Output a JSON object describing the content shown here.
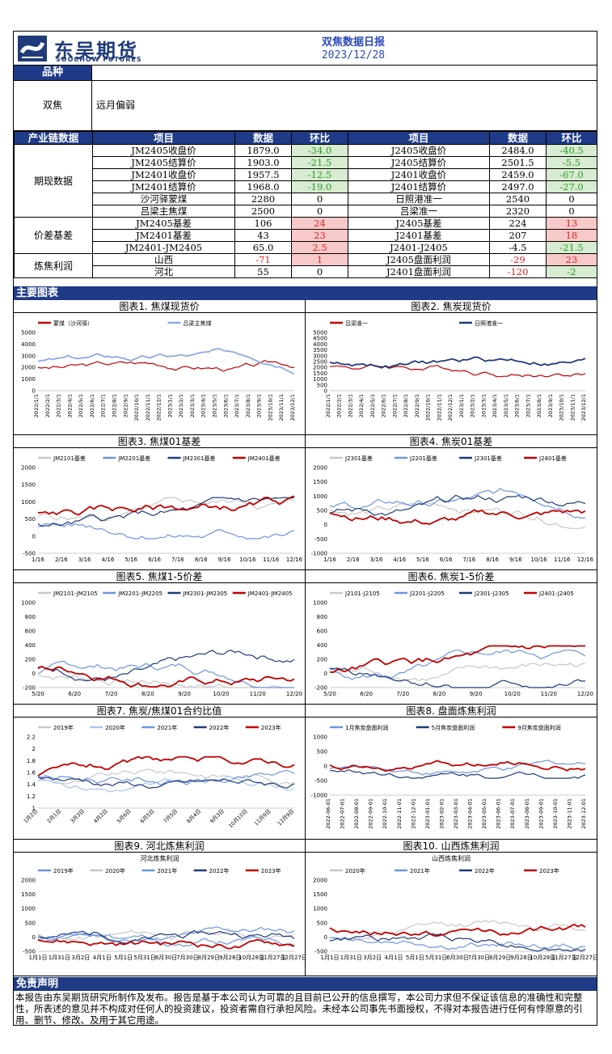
{
  "header": {
    "logo_cn": "东吴期货",
    "logo_en": "SOOCHOW FUTURES",
    "title": "双焦数据日报",
    "date": "2023/12/28"
  },
  "variety_label": "品种",
  "view": {
    "label": "双焦",
    "value": "远月偏弱"
  },
  "table": {
    "group_header": "产业链数据",
    "col_item": "项目",
    "col_data": "数据",
    "col_change": "环比",
    "groups": [
      {
        "name": "期现数据",
        "rows": [
          [
            "JM2405收盘价",
            "1879.0",
            "-34.0",
            "J2405收盘价",
            "2484.0",
            "-40.5"
          ],
          [
            "JM2405结算价",
            "1903.0",
            "-21.5",
            "J2405结算价",
            "2501.5",
            "-5.5"
          ],
          [
            "JM2401收盘价",
            "1957.5",
            "-12.5",
            "J2401收盘价",
            "2459.0",
            "-67.0"
          ],
          [
            "JM2401结算价",
            "1968.0",
            "-19.0",
            "J2401结算价",
            "2497.0",
            "-27.0"
          ],
          [
            "沙河驿蒙煤",
            "2280",
            "0",
            "日照港准一",
            "2540",
            "0"
          ],
          [
            "吕梁主焦煤",
            "2500",
            "0",
            "吕梁准一",
            "2320",
            "0"
          ]
        ]
      },
      {
        "name": "价差基差",
        "rows": [
          [
            "JM2405基差",
            "106",
            "24",
            "J2405基差",
            "224",
            "13"
          ],
          [
            "JM2401基差",
            "43",
            "23",
            "J2401基差",
            "207",
            "18"
          ],
          [
            "JM2401-JM2405",
            "65.0",
            "2.5",
            "J2401-J2405",
            "-4.5",
            "-21.5"
          ]
        ]
      },
      {
        "name": "炼焦利润",
        "rows": [
          [
            "山西",
            "-71",
            "1",
            "J2405盘面利润",
            "-29",
            "23"
          ],
          [
            "河北",
            "55",
            "0",
            "J2401盘面利润",
            "-120",
            "-2"
          ]
        ]
      }
    ]
  },
  "charts_label": "主要图表",
  "charts": [
    {
      "title": "图表1. 焦煤现货价",
      "legend": [
        "蒙煤（沙河驿）",
        "吕梁主焦煤"
      ],
      "colors": [
        "#c00000",
        "#8ea9e6"
      ],
      "yticks": [
        "5000",
        "4000",
        "3000",
        "2000",
        "1000",
        "0"
      ],
      "xticks": [
        "2022/1/1",
        "2022/2/1",
        "2022/3/1",
        "2022/4/1",
        "2022/5/1",
        "2022/6/1",
        "2022/7/1",
        "2022/8/1",
        "2022/9/1",
        "2022/10/1",
        "2022/11/1",
        "2022/12/1",
        "2023/1/1",
        "2023/2/1",
        "2023/3/1",
        "2023/4/1",
        "2023/5/1",
        "2023/6/1",
        "2023/7/1",
        "2023/8/1",
        "2023/9/1",
        "2023/10/1",
        "2023/11/1",
        "2023/12/1"
      ]
    },
    {
      "title": "图表2. 焦炭现货价",
      "legend": [
        "吕梁准一",
        "日照港准一"
      ],
      "colors": [
        "#c00000",
        "#1f3b7a"
      ],
      "yticks": [
        "5000",
        "4500",
        "4000",
        "3500",
        "3000",
        "2500",
        "2000",
        "1500",
        "1000",
        "500",
        "0"
      ],
      "xticks": [
        "2022/1/1",
        "2022/2/1",
        "2022/3/1",
        "2022/4/1",
        "2022/5/1",
        "2022/6/1",
        "2022/7/1",
        "2022/8/1",
        "2022/9/1",
        "2022/10/1",
        "2022/11/1",
        "2022/12/1",
        "2023/1/1",
        "2023/2/1",
        "2023/3/1",
        "2023/4/1",
        "2023/5/1",
        "2023/6/1",
        "2023/7/1",
        "2023/8/1",
        "2023/9/1",
        "2023/10/1",
        "2023/11/1",
        "2023/12/1"
      ]
    },
    {
      "title": "图表3. 焦煤01基差",
      "legend": [
        "JM2101基差",
        "JM2201基差",
        "JM2301基差",
        "JM2401基差"
      ],
      "colors": [
        "#c8c8c8",
        "#6d95e3",
        "#1f3b7a",
        "#c00000"
      ],
      "yticks": [
        "2000",
        "1500",
        "1000",
        "500",
        "0",
        "-500"
      ],
      "xticks": [
        "1/16",
        "2/16",
        "3/16",
        "4/16",
        "5/16",
        "6/16",
        "7/16",
        "8/16",
        "9/16",
        "10/16",
        "11/16",
        "12/16"
      ]
    },
    {
      "title": "图表4. 焦炭01基差",
      "legend": [
        "J2301基差",
        "J2201基差",
        "J2301基差",
        "J2401基差"
      ],
      "colors": [
        "#c8c8c8",
        "#6d95e3",
        "#1f3b7a",
        "#c00000"
      ],
      "yticks": [
        "2000",
        "1500",
        "1000",
        "500",
        "0",
        "-500",
        "-1000"
      ],
      "xticks": [
        "1/16",
        "2/16",
        "3/16",
        "4/16",
        "5/16",
        "6/16",
        "7/16",
        "8/16",
        "9/16",
        "10/16",
        "11/16",
        "12/16"
      ]
    },
    {
      "title": "图表5. 焦煤1-5价差",
      "legend": [
        "JM2101-JM2105",
        "JM2201-JM2205",
        "JM2301-JM2305",
        "JM2401-JM2405"
      ],
      "colors": [
        "#c8c8c8",
        "#6d95e3",
        "#1f3b7a",
        "#c00000"
      ],
      "yticks": [
        "1000",
        "800",
        "600",
        "400",
        "200",
        "0",
        "-200"
      ],
      "xticks": [
        "5/20",
        "6/20",
        "7/20",
        "8/20",
        "9/20",
        "10/20",
        "11/20",
        "12/20"
      ]
    },
    {
      "title": "图表6. 焦炭1-5价差",
      "legend": [
        "J2101-J2105",
        "J2201-J2205",
        "J2301-J2305",
        "J2401-J2405"
      ],
      "colors": [
        "#c8c8c8",
        "#6d95e3",
        "#1f3b7a",
        "#c00000"
      ],
      "yticks": [
        "1000",
        "800",
        "600",
        "400",
        "200",
        "0",
        "-200"
      ],
      "xticks": [
        "5/20",
        "6/20",
        "7/20",
        "8/20",
        "9/20",
        "10/20",
        "11/20",
        "12/20"
      ]
    },
    {
      "title": "图表7. 焦炭/焦煤01合约比值",
      "legend": [
        "2019年",
        "2020年",
        "2021年",
        "2022年",
        "2023年"
      ],
      "colors": [
        "#c8c8c8",
        "#a9c4f0",
        "#6d95e3",
        "#1f3b7a",
        "#c00000"
      ],
      "yticks": [
        "2.2",
        "2",
        "1.8",
        "1.6",
        "1.4",
        "1.2",
        "1"
      ],
      "xticks": [
        "1月2日",
        "2月1日",
        "3月3日",
        "4月2日",
        "5月6日",
        "6月5日",
        "7月5日",
        "8月4日",
        "9月3日",
        "10月10日",
        "11月9日",
        "12月9日"
      ]
    },
    {
      "title": "图表8. 盘面炼焦利润",
      "legend": [
        "1月焦炭盘面利润",
        "5月焦炭盘面利润",
        "9月焦炭盘面利润"
      ],
      "colors": [
        "#6d95e3",
        "#1f3b7a",
        "#c00000"
      ],
      "yticks": [
        "1000",
        "500",
        "0",
        "-500",
        "-1000"
      ],
      "xticks": [
        "2022-06-01",
        "2022-07-01",
        "2022-08-01",
        "2022-09-01",
        "2022-10-01",
        "2022-11-01",
        "2022-12-01",
        "2023-01-01",
        "2023-02-01",
        "2023-03-01",
        "2023-04-01",
        "2023-05-01",
        "2023-06-01",
        "2023-07-01",
        "2023-08-01",
        "2023-09-01",
        "2023-10-01",
        "2023-11-01",
        "2023-12-01"
      ]
    },
    {
      "title": "图表9. 河北炼焦利润",
      "subtitle": "河北炼焦利润",
      "legend": [
        "2019年",
        "2020年",
        "2021年",
        "2022年",
        "2023年"
      ],
      "colors": [
        "#6d95e3",
        "#c8c8c8",
        "#6d95e3",
        "#1f3b7a",
        "#c00000"
      ],
      "yticks": [
        "2000",
        "1500",
        "1000",
        "500",
        "0",
        "-500"
      ],
      "xticks": [
        "1月1日",
        "1月31日",
        "3月2日",
        "4月1日",
        "5月1日",
        "5月31日",
        "6月30日",
        "7月30日",
        "8月29日",
        "9月28日",
        "10月28日",
        "11月27日",
        "12月27日"
      ]
    },
    {
      "title": "图表10. 山西炼焦利润",
      "subtitle": "山西炼焦利润",
      "legend": [
        "2020年",
        "2021年",
        "2022年",
        "2023年"
      ],
      "colors": [
        "#c8c8c8",
        "#6d95e3",
        "#1f3b7a",
        "#c00000"
      ],
      "yticks": [
        "2000",
        "1500",
        "1000",
        "500",
        "0",
        "-500"
      ],
      "xticks": [
        "1月1日",
        "1月31日",
        "3月2日",
        "4月1日",
        "5月1日",
        "5月31日",
        "6月30日",
        "7月30日",
        "8月29日",
        "9月28日",
        "10月28日",
        "11月27日",
        "12月27日"
      ]
    }
  ],
  "disclaimer_label": "免责声明",
  "disclaimer": "本报告由东吴期货研究所制作及发布。报告是基于本公司认为可靠的且目前已公开的信息撰写，本公司力求但不保证该信息的准确性和完整性，所表述的意见并不构成对任何人的投资建议，投资者需自行承担风险。未经本公司事先书面授权，不得对本报告进行任何有悖原意的引用、删节、修改、及用于其它用途。"
}
